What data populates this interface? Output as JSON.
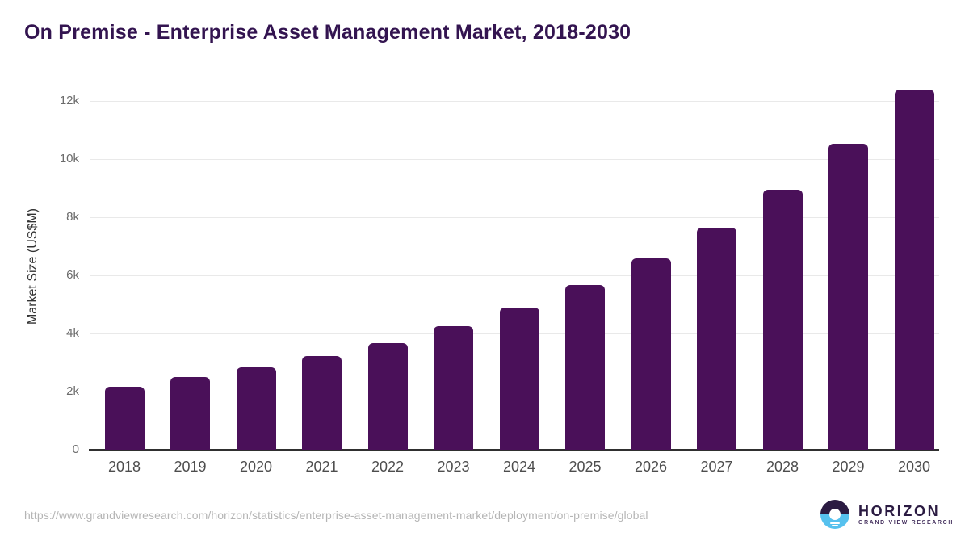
{
  "title": "On Premise - Enterprise Asset Management Market, 2018-2030",
  "colors": {
    "bar": "#4a1059",
    "title": "#331450",
    "gridline": "#e9e9e9",
    "axis_line": "#2f2f2f",
    "logo_dark": "#2b1b42",
    "logo_blue": "#56c1ee"
  },
  "chart_data": {
    "type": "bar",
    "title": "On Premise - Enterprise Asset Management Market, 2018-2030",
    "categories": [
      "2018",
      "2019",
      "2020",
      "2021",
      "2022",
      "2023",
      "2024",
      "2025",
      "2026",
      "2027",
      "2028",
      "2029",
      "2030"
    ],
    "values": [
      2180,
      2490,
      2840,
      3210,
      3680,
      4240,
      4890,
      5660,
      6570,
      7630,
      8950,
      10520,
      12400
    ],
    "xlabel": "",
    "ylabel": "Market Size (US$M)",
    "ylim": [
      0,
      12694
    ],
    "yticks": [
      {
        "label": "0",
        "value": 0
      },
      {
        "label": "2k",
        "value": 2000
      },
      {
        "label": "4k",
        "value": 4000
      },
      {
        "label": "6k",
        "value": 6000
      },
      {
        "label": "8k",
        "value": 8000
      },
      {
        "label": "10k",
        "value": 10000
      },
      {
        "label": "12k",
        "value": 12000
      }
    ],
    "grid": "horizontal",
    "legend": "none"
  },
  "footer": {
    "source_url": "https://www.grandviewresearch.com/horizon/statistics/enterprise-asset-management-market/deployment/on-premise/global",
    "logo": {
      "icon": "horizon-sunrise-icon",
      "name": "HORIZON",
      "subtitle": "GRAND VIEW RESEARCH"
    }
  }
}
